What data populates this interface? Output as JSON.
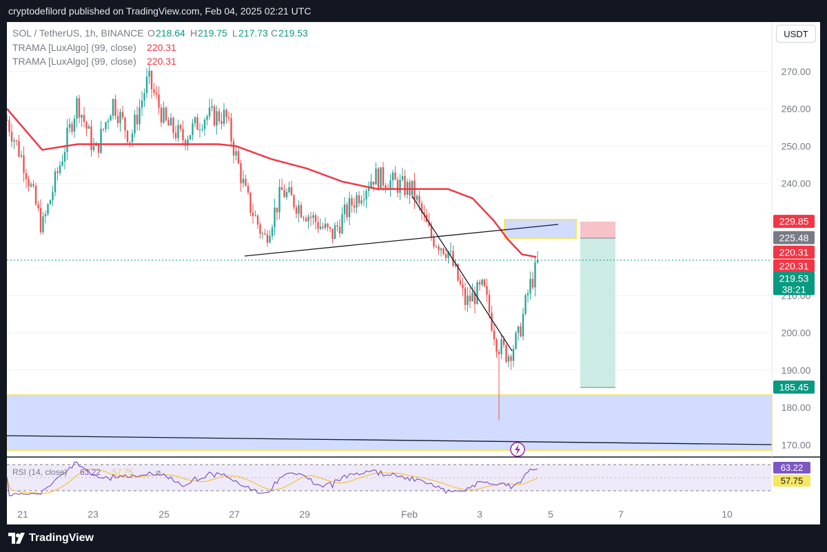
{
  "header": {
    "publisher_line": "cryptodefilord published on TradingView.com, Feb 04, 2025 02:21 UTC"
  },
  "legend": {
    "symbol_line": "SOL / TetherUS, 1h, BINANCE",
    "o_label": "O",
    "o_value": "218.64",
    "h_label": "H",
    "h_value": "219.75",
    "l_label": "L",
    "l_value": "217.73",
    "c_label": "C",
    "c_value": "219.53",
    "indicators": [
      {
        "name": "TRAMA [LuxAlgo] (99, close)",
        "value": "220.31"
      },
      {
        "name": "TRAMA [LuxAlgo] (99, close)",
        "value": "220.31"
      }
    ]
  },
  "currency_button": "USDT",
  "footer": {
    "brand": "TradingView"
  },
  "rsi_legend": {
    "label": "RSI (14, close)",
    "value1": "63.22",
    "value2": "57.75",
    "symbol": "⌀"
  },
  "colors": {
    "up": "#26a69a",
    "down": "#ef5350",
    "trama": "#f23645",
    "zone_fill": "#d1dcff",
    "zone_border": "#f5e663",
    "rsi": "#7e57c2",
    "rsi_ma": "#f5c542",
    "tp_fill": "#cdebe5",
    "sl_fill": "#f8c3c8"
  },
  "chart_data": {
    "type": "candlestick",
    "symbol": "SOL / TetherUS",
    "interval": "1h",
    "exchange": "BINANCE",
    "ylim": [
      166,
      276
    ],
    "y_ticks": [
      270,
      260,
      250,
      240,
      210,
      200,
      190,
      180,
      170
    ],
    "y_tick_labels": [
      "270.00",
      "260.00",
      "250.00",
      "240.00",
      "210.00",
      "200.00",
      "190.00",
      "180.00",
      "170.00"
    ],
    "x_ticks": [
      "21",
      "23",
      "25",
      "27",
      "29",
      "Feb",
      "3",
      "5",
      "7",
      "10"
    ],
    "price_key_points": [
      {
        "t": 0,
        "p": 257
      },
      {
        "t": 0.5,
        "p": 245
      },
      {
        "t": 1,
        "p": 228
      },
      {
        "t": 2,
        "p": 262
      },
      {
        "t": 2.5,
        "p": 248
      },
      {
        "t": 3,
        "p": 262
      },
      {
        "t": 3.5,
        "p": 252
      },
      {
        "t": 4,
        "p": 268
      },
      {
        "t": 4.5,
        "p": 256
      },
      {
        "t": 5,
        "p": 252
      },
      {
        "t": 5.6,
        "p": 258
      },
      {
        "t": 6.2,
        "p": 258
      },
      {
        "t": 6.8,
        "p": 236
      },
      {
        "t": 7.3,
        "p": 225
      },
      {
        "t": 7.8,
        "p": 238
      },
      {
        "t": 8.5,
        "p": 232
      },
      {
        "t": 9.2,
        "p": 226
      },
      {
        "t": 9.8,
        "p": 235
      },
      {
        "t": 10.4,
        "p": 242
      },
      {
        "t": 11,
        "p": 240
      },
      {
        "t": 11.5,
        "p": 238
      },
      {
        "t": 12,
        "p": 226
      },
      {
        "t": 12.5,
        "p": 222
      },
      {
        "t": 13,
        "p": 208
      },
      {
        "t": 13.5,
        "p": 212
      },
      {
        "t": 13.9,
        "p": 197
      },
      {
        "t": 14.2,
        "p": 194
      },
      {
        "t": 14.5,
        "p": 199
      },
      {
        "t": 14.8,
        "p": 212
      },
      {
        "t": 15.1,
        "p": 219.5
      }
    ],
    "trama": [
      {
        "t": 0,
        "p": 260
      },
      {
        "t": 1,
        "p": 249
      },
      {
        "t": 2,
        "p": 250.5
      },
      {
        "t": 4,
        "p": 250.5
      },
      {
        "t": 6,
        "p": 250.5
      },
      {
        "t": 6.5,
        "p": 250
      },
      {
        "t": 7.5,
        "p": 246.5
      },
      {
        "t": 8.5,
        "p": 244
      },
      {
        "t": 9.5,
        "p": 240.5
      },
      {
        "t": 10.5,
        "p": 238.5
      },
      {
        "t": 12.5,
        "p": 238.5
      },
      {
        "t": 13.2,
        "p": 236
      },
      {
        "t": 13.8,
        "p": 230
      },
      {
        "t": 14.2,
        "p": 225
      },
      {
        "t": 14.6,
        "p": 221
      },
      {
        "t": 15,
        "p": 220.31
      }
    ],
    "last": {
      "o": 218.64,
      "h": 219.75,
      "l": 217.73,
      "c": 219.53,
      "countdown": "38:21"
    },
    "low_wick": 176.5,
    "price_labels": [
      {
        "value": "229.85",
        "p": 229.85,
        "color": "#f23645"
      },
      {
        "value": "225.48",
        "p": 225.48,
        "color": "#787b86"
      },
      {
        "value": "220.31",
        "p": 221.6,
        "color": "#f23645"
      },
      {
        "value": "220.31",
        "p": 217.9,
        "color": "#f23645"
      },
      {
        "value": "219.53",
        "p": 214.6,
        "color": "#089981"
      },
      {
        "value": "185.45",
        "p": 185.45,
        "color": "#089981"
      }
    ],
    "rsi": {
      "label": "RSI (14, close)",
      "value": 63.22,
      "ma": 57.75,
      "bands": [
        70,
        50,
        30
      ]
    }
  }
}
